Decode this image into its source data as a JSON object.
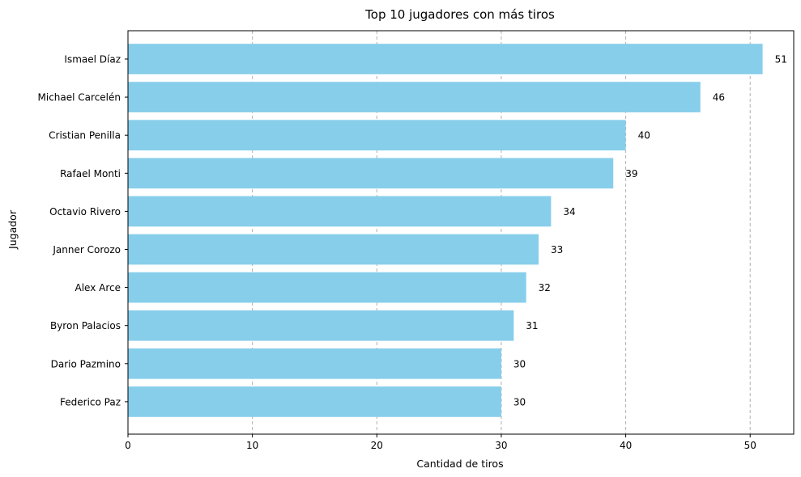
{
  "chart_data": {
    "type": "bar",
    "orientation": "horizontal",
    "title": "Top 10 jugadores con más tiros",
    "xlabel": "Cantidad de tiros",
    "ylabel": "Jugador",
    "categories": [
      "Ismael Díaz",
      "Michael Carcelén",
      "Cristian Penilla",
      "Rafael Monti",
      "Octavio Rivero",
      "Janner Corozo",
      "Alex Arce",
      "Byron Palacios",
      "Dario Pazmino",
      "Federico Paz"
    ],
    "values": [
      51,
      46,
      40,
      39,
      34,
      33,
      32,
      31,
      30,
      30
    ],
    "data_labels": [
      "51",
      "46",
      "40",
      "39",
      "34",
      "33",
      "32",
      "31",
      "30",
      "30"
    ],
    "xlim": [
      0,
      53.5
    ],
    "xticks": [
      0,
      10,
      20,
      30,
      40,
      50
    ],
    "xtick_labels": [
      "0",
      "10",
      "20",
      "30",
      "40",
      "50"
    ],
    "grid": "x-axis dashed",
    "bar_color": "#87CEEB"
  }
}
